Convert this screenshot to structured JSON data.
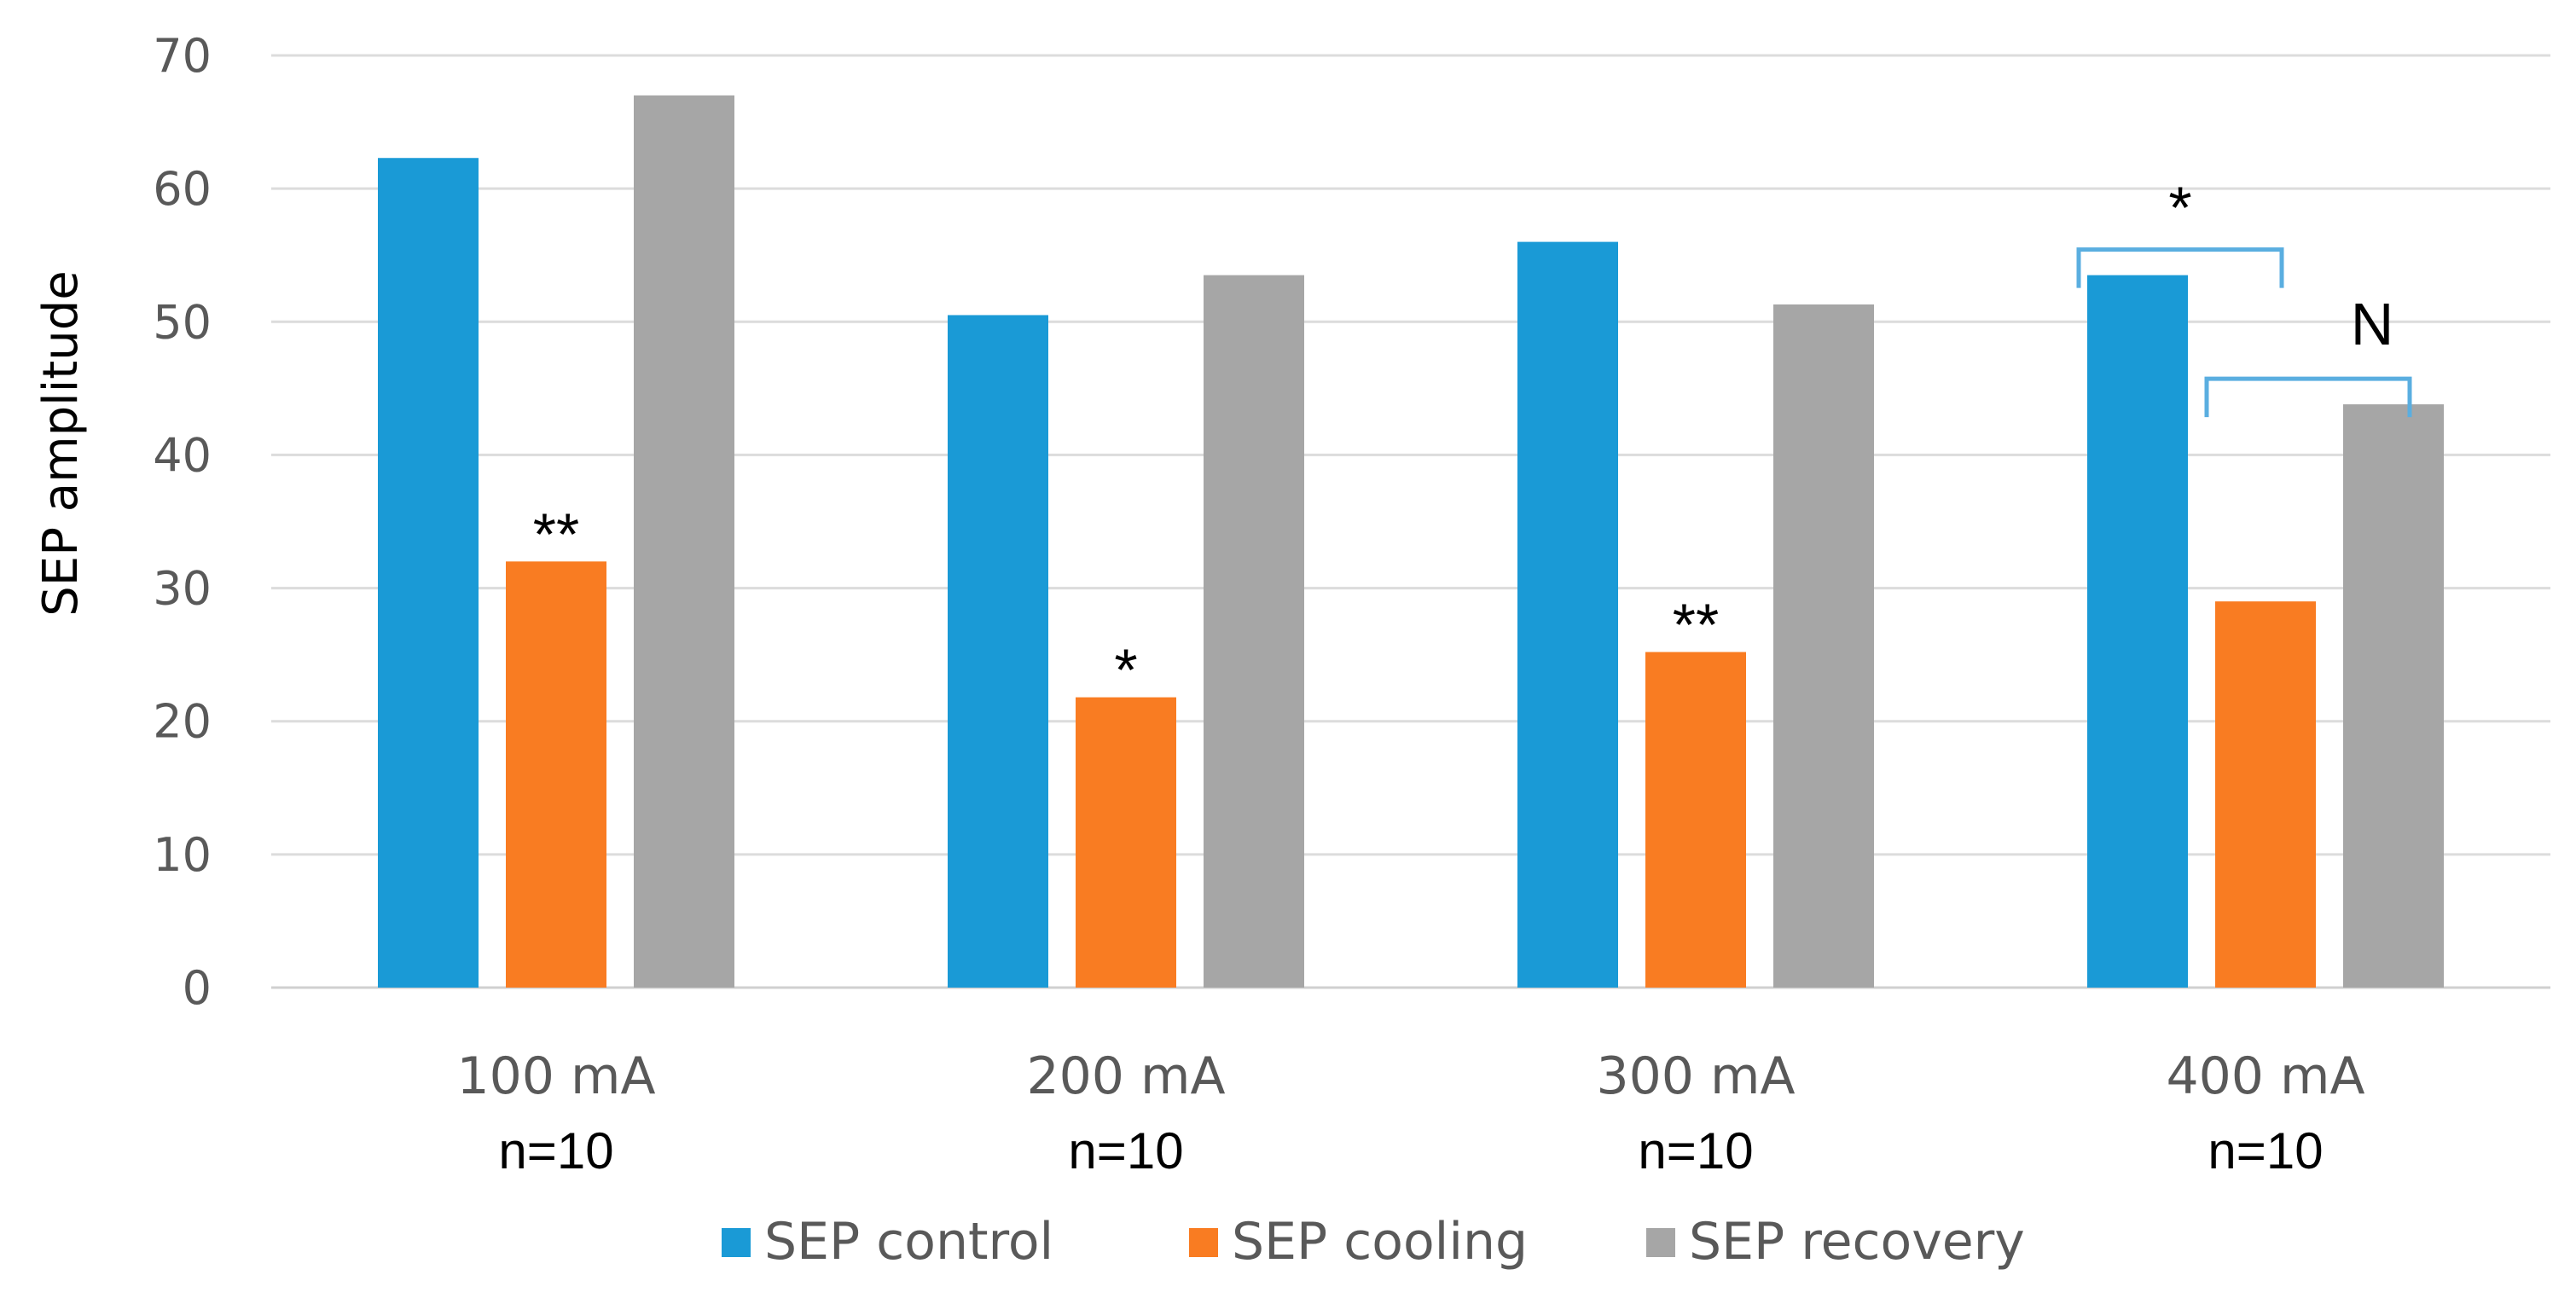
{
  "chart_data": {
    "type": "bar",
    "ylabel": "SEP amplitude",
    "ylim": [
      0,
      70
    ],
    "yticks": [
      0,
      10,
      20,
      30,
      40,
      50,
      60,
      70
    ],
    "grid": true,
    "categories": [
      "100 mA",
      "200 mA",
      "300 mA",
      "400 mA"
    ],
    "category_sublabels": [
      "n=10",
      "n=10",
      "n=10",
      "n=10"
    ],
    "series": [
      {
        "name": "SEP control",
        "color": "#1a9ad6",
        "values": [
          62.3,
          50.5,
          56.0,
          53.5
        ]
      },
      {
        "name": "SEP cooling",
        "color": "#f97c22",
        "values": [
          32.0,
          21.8,
          25.2,
          29.0
        ]
      },
      {
        "name": "SEP recovery",
        "color": "#a6a6a6",
        "values": [
          67.0,
          53.5,
          51.3,
          43.8
        ]
      }
    ],
    "annotations": [
      {
        "text": "**",
        "category": 0,
        "series": 1
      },
      {
        "text": "*",
        "category": 1,
        "series": 1
      },
      {
        "text": "**",
        "category": 2,
        "series": 1
      },
      {
        "text": "*",
        "category": 3,
        "bracket_series": [
          0,
          1
        ]
      },
      {
        "text": "N",
        "category": 3,
        "bracket_series": [
          1,
          2
        ]
      }
    ],
    "legend_position": "bottom"
  }
}
